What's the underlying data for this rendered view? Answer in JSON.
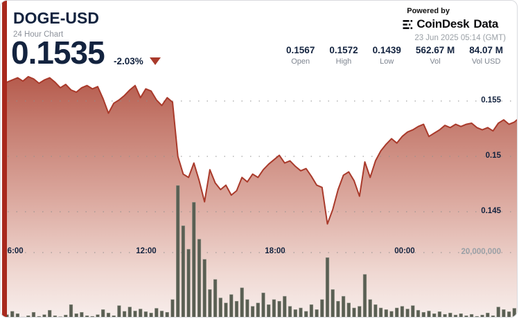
{
  "header": {
    "symbol": "DOGE-USD",
    "subtitle": "24 Hour Chart",
    "price": "0.1535",
    "change": "-2.03%",
    "direction": "down",
    "powered_by": "Powered by",
    "brand_name": "CoinDesk",
    "brand_suffix": "Data",
    "timestamp": "23 Jun 2025 05:14 (GMT)"
  },
  "stats": {
    "items": [
      {
        "value": "0.1567",
        "label": "Open"
      },
      {
        "value": "0.1572",
        "label": "High"
      },
      {
        "value": "0.1439",
        "label": "Low"
      },
      {
        "value": "562.67 M",
        "label": "Vol"
      },
      {
        "value": "84.07 M",
        "label": "Vol USD"
      }
    ]
  },
  "colors": {
    "accent_red": "#a8291d",
    "line_red": "#a93a2b",
    "navy": "#13233f",
    "volume_bar": "#5a5f53"
  },
  "chart_data": {
    "type": "combo",
    "subtypes": [
      "area",
      "bar"
    ],
    "title": "DOGE-USD 24 Hour Chart",
    "x_axis": {
      "start": "05:15",
      "end": "05:15 (+24h)",
      "interval_minutes": 15,
      "tick_labels": [
        "06:00",
        "12:00",
        "18:00",
        "00:00"
      ]
    },
    "y_axis_price": {
      "tick_labels": [
        "0.155",
        "0.15",
        "0.145"
      ],
      "tick_values": [
        0.155,
        0.15,
        0.145
      ]
    },
    "y_axis_volume": {
      "tick_labels": [
        "20,000,000"
      ],
      "tick_values": [
        20000000
      ]
    },
    "grid": true,
    "legend": false,
    "series": [
      {
        "name": "DOGE-USD price",
        "type": "area",
        "color": "#a93a2b",
        "values": [
          0.1567,
          0.1569,
          0.1571,
          0.1568,
          0.1572,
          0.157,
          0.1566,
          0.1569,
          0.1571,
          0.1567,
          0.1562,
          0.1565,
          0.156,
          0.1558,
          0.1562,
          0.1564,
          0.1561,
          0.1563,
          0.1552,
          0.1539,
          0.1548,
          0.1551,
          0.1555,
          0.156,
          0.1564,
          0.1553,
          0.1561,
          0.1559,
          0.1551,
          0.1546,
          0.1553,
          0.1549,
          0.15,
          0.1484,
          0.1481,
          0.1494,
          0.1478,
          0.1459,
          0.1488,
          0.1476,
          0.147,
          0.1474,
          0.1465,
          0.1469,
          0.1481,
          0.1477,
          0.1484,
          0.1481,
          0.1488,
          0.1493,
          0.1497,
          0.1501,
          0.1494,
          0.1496,
          0.1491,
          0.1487,
          0.1489,
          0.1482,
          0.1474,
          0.1472,
          0.1439,
          0.1452,
          0.147,
          0.1483,
          0.1486,
          0.1478,
          0.1464,
          0.1495,
          0.1481,
          0.1496,
          0.1505,
          0.1511,
          0.1516,
          0.1512,
          0.1518,
          0.1522,
          0.1524,
          0.1527,
          0.1529,
          0.1518,
          0.1521,
          0.1524,
          0.1528,
          0.1526,
          0.1529,
          0.1527,
          0.1529,
          0.153,
          0.1526,
          0.1524,
          0.1526,
          0.1523,
          0.153,
          0.1533,
          0.1529,
          0.1531,
          0.1535
        ]
      },
      {
        "name": "DOGE-USD volume",
        "type": "bar",
        "color": "#5a5f53",
        "unit": "millions",
        "values": [
          1.5,
          2.5,
          1.8,
          0.8,
          1.2,
          2.2,
          1.0,
          1.5,
          2.8,
          1.2,
          0.9,
          1.4,
          4.5,
          1.8,
          2.2,
          1.2,
          1.0,
          1.5,
          3.0,
          2.0,
          1.2,
          4.2,
          2.5,
          3.8,
          2.6,
          3.2,
          2.4,
          2.0,
          3.4,
          2.6,
          2.2,
          6.0,
          40.0,
          28.0,
          21.0,
          35.0,
          24.0,
          18.0,
          9.0,
          12.0,
          6.5,
          5.0,
          7.5,
          5.5,
          9.5,
          6.0,
          4.0,
          5.0,
          8.0,
          4.5,
          6.0,
          5.5,
          7.0,
          4.0,
          3.0,
          3.5,
          2.5,
          4.5,
          3.0,
          6.0,
          18.5,
          9.0,
          5.5,
          7.0,
          5.0,
          3.5,
          4.0,
          13.5,
          6.0,
          4.5,
          3.5,
          3.0,
          2.5,
          3.5,
          4.0,
          3.2,
          4.2,
          2.8,
          2.2,
          2.6,
          1.8,
          2.4,
          1.6,
          2.0,
          1.4,
          1.8,
          1.2,
          1.6,
          1.0,
          1.4,
          2.0,
          1.2,
          3.8,
          3.0,
          2.4,
          3.4,
          2.0
        ]
      }
    ]
  }
}
